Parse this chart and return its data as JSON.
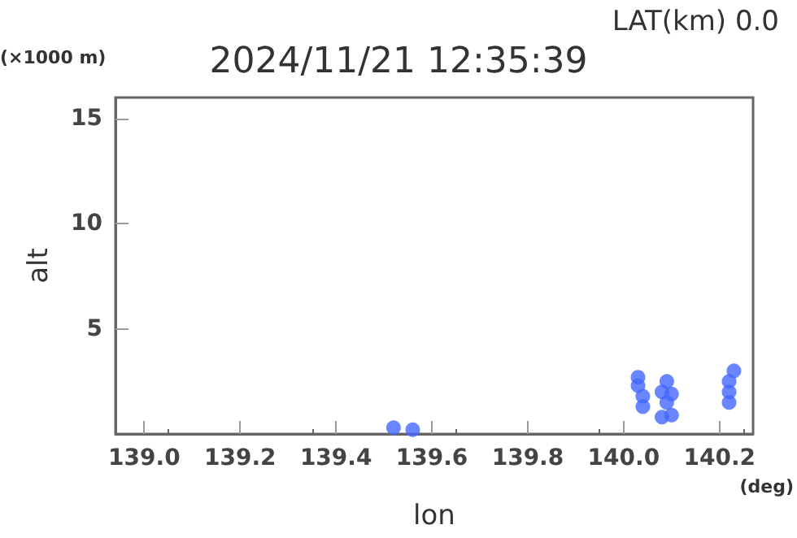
{
  "chart_data": {
    "type": "scatter",
    "title": "2024/11/21 12:35:39",
    "subtitle": "LAT(km) 0.0",
    "xlabel": "lon",
    "ylabel": "alt",
    "annotations": [
      "(×1000 m)",
      "(deg)"
    ],
    "xlim": [
      138.94,
      140.27
    ],
    "ylim": [
      0,
      16
    ],
    "xticks": [
      {
        "value": 139,
        "label": "139.0"
      },
      {
        "value": 139.2,
        "label": "139.2"
      },
      {
        "value": 139.4,
        "label": "139.4"
      },
      {
        "value": 139.6,
        "label": "139.6"
      },
      {
        "value": 139.8,
        "label": "139.8"
      },
      {
        "value": 140,
        "label": "140.0"
      },
      {
        "value": 140.2,
        "label": "140.2"
      }
    ],
    "yticks": [
      5,
      10,
      15
    ],
    "marker": "circle",
    "grid": false,
    "series": [
      {
        "color": "#4466ff",
        "x": [
          139.52,
          139.56,
          140.04,
          140.04,
          140.03,
          140.03,
          140.08,
          140.1,
          140.09,
          140.08,
          140.1,
          140.09,
          140.22,
          140.22,
          140.22,
          140.23
        ],
        "values": [
          0.3,
          0.2,
          1.3,
          1.8,
          2.3,
          2.7,
          0.8,
          0.9,
          1.5,
          2.0,
          1.9,
          2.5,
          1.5,
          2.0,
          2.5,
          3.0
        ]
      }
    ]
  }
}
